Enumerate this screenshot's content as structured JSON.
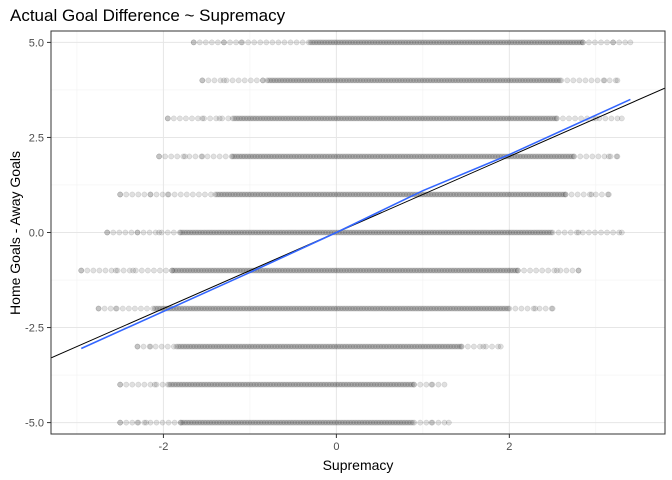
{
  "chart_data": {
    "type": "scatter",
    "title": "Actual Goal Difference ~ Supremacy",
    "xlabel": "Supremacy",
    "ylabel": "Home Goals - Away Goals",
    "xlim": [
      -3.3,
      3.8
    ],
    "ylim": [
      -5.3,
      5.3
    ],
    "x_ticks": [
      -2,
      0,
      2
    ],
    "x_tick_labels": [
      "-2",
      "0",
      "2"
    ],
    "y_ticks": [
      -5,
      -2.5,
      0,
      2.5,
      5
    ],
    "y_tick_labels": [
      "-5.0",
      "-2.5",
      "0.0",
      "2.5",
      "5.0"
    ],
    "grid": true,
    "point_color": "#000000",
    "point_alpha": 0.12,
    "observation_rows": [
      {
        "y": 5,
        "x_range": [
          -1.65,
          3.4
        ],
        "dense_range": [
          -0.3,
          2.85
        ],
        "isolated_x": [
          -1.65,
          -1.3,
          -1.1,
          3.2,
          3.4
        ]
      },
      {
        "y": 4,
        "x_range": [
          -1.55,
          3.25
        ],
        "dense_range": [
          -0.8,
          2.6
        ],
        "isolated_x": [
          -1.55,
          -1.3,
          -0.85,
          3.1,
          3.25
        ]
      },
      {
        "y": 3,
        "x_range": [
          -1.95,
          3.3
        ],
        "dense_range": [
          -1.2,
          2.55
        ],
        "isolated_x": [
          -1.95,
          -1.55,
          -1.35,
          3.0,
          3.3
        ]
      },
      {
        "y": 2,
        "x_range": [
          -2.05,
          3.25
        ],
        "dense_range": [
          -1.2,
          2.75
        ],
        "isolated_x": [
          -2.05,
          -1.75,
          -1.55,
          3.15,
          3.25
        ]
      },
      {
        "y": 1,
        "x_range": [
          -2.5,
          3.15
        ],
        "dense_range": [
          -1.4,
          2.65
        ],
        "isolated_x": [
          -2.5,
          -2.15,
          -1.95,
          2.95,
          3.15
        ]
      },
      {
        "y": 0,
        "x_range": [
          -2.65,
          3.3
        ],
        "dense_range": [
          -1.8,
          2.5
        ],
        "isolated_x": [
          -2.65,
          -2.3,
          -2.05,
          2.8,
          3.3
        ]
      },
      {
        "y": -1,
        "x_range": [
          -2.95,
          2.8
        ],
        "dense_range": [
          -1.9,
          2.1
        ],
        "isolated_x": [
          -2.95,
          -2.55,
          -2.35,
          2.55,
          2.8
        ]
      },
      {
        "y": -2,
        "x_range": [
          -2.75,
          2.5
        ],
        "dense_range": [
          -2.1,
          2.0
        ],
        "isolated_x": [
          -2.75,
          -2.55,
          2.3,
          2.5
        ]
      },
      {
        "y": -3,
        "x_range": [
          -2.3,
          1.9
        ],
        "dense_range": [
          -1.85,
          1.45
        ],
        "isolated_x": [
          -2.3,
          -2.15,
          1.7,
          1.9
        ]
      },
      {
        "y": -4,
        "x_range": [
          -2.5,
          1.25
        ],
        "dense_range": [
          -1.95,
          0.9
        ],
        "isolated_x": [
          -2.5,
          -2.1,
          1.1,
          1.25
        ]
      },
      {
        "y": -5,
        "x_range": [
          -2.5,
          1.3
        ],
        "dense_range": [
          -1.8,
          0.9
        ],
        "isolated_x": [
          -2.5,
          -2.3,
          -2.2,
          1.1,
          1.3
        ]
      }
    ],
    "fitted_lines": [
      {
        "color": "#000000",
        "x": [
          -3.3,
          3.8
        ],
        "y": [
          -3.3,
          3.8
        ]
      },
      {
        "color": "#3366ff",
        "x": [
          -2.95,
          -1.0,
          0.0,
          1.0,
          2.0,
          3.4
        ],
        "y": [
          -3.05,
          -1.05,
          0.0,
          1.1,
          2.05,
          3.5
        ]
      }
    ]
  }
}
